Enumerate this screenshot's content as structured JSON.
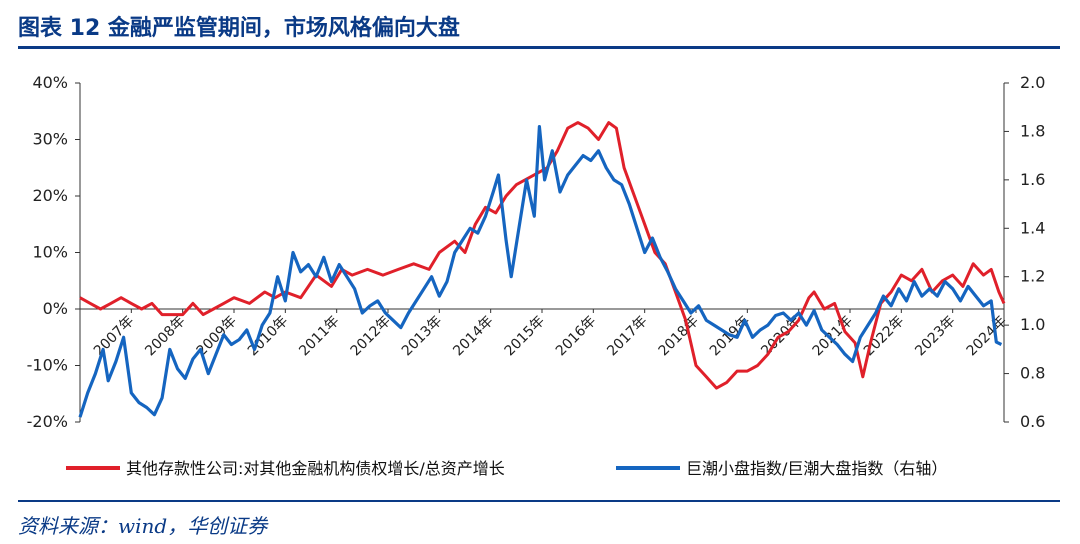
{
  "header": {
    "title": "图表 12 金融严监管期间，市场风格偏向大盘"
  },
  "footer": {
    "source": "资料来源：wind，华创证券"
  },
  "colors": {
    "series_red": "#e0202a",
    "series_blue": "#1565c0",
    "accent": "#0a3a86"
  },
  "chart_data": {
    "type": "line",
    "title": "",
    "xlabel": "",
    "ylabel": "",
    "x_tick_labels": [
      "2007年",
      "2008年",
      "2009年",
      "2010年",
      "2011年",
      "2012年",
      "2013年",
      "2014年",
      "2015年",
      "2016年",
      "2017年",
      "2018年",
      "2019年",
      "2020年",
      "2021年",
      "2022年",
      "2023年",
      "2024年"
    ],
    "xlim": [
      2007.0,
      2025.0
    ],
    "y_left": {
      "ylim": [
        -20,
        40
      ],
      "ticks": [
        "-20%",
        "-10%",
        "0%",
        "10%",
        "20%",
        "30%",
        "40%"
      ],
      "tick_values": [
        -20,
        -10,
        0,
        10,
        20,
        30,
        40
      ]
    },
    "y_right": {
      "ylim": [
        0.6,
        2.0
      ],
      "ticks": [
        "0.6",
        "0.8",
        "1.0",
        "1.2",
        "1.4",
        "1.6",
        "1.8",
        "2.0"
      ],
      "tick_values": [
        0.6,
        0.8,
        1.0,
        1.2,
        1.4,
        1.6,
        1.8,
        2.0
      ]
    },
    "legend": {
      "position": "bottom"
    },
    "series": [
      {
        "name": "其他存款性公司:对其他金融机构债权增长/总资产增长",
        "axis": "left",
        "color": "#e0202a",
        "points": [
          [
            2007.0,
            2
          ],
          [
            2007.2,
            1
          ],
          [
            2007.4,
            0
          ],
          [
            2007.6,
            1
          ],
          [
            2007.8,
            2
          ],
          [
            2008.0,
            1
          ],
          [
            2008.2,
            0
          ],
          [
            2008.4,
            1
          ],
          [
            2008.6,
            -1
          ],
          [
            2008.8,
            -1
          ],
          [
            2009.0,
            -1
          ],
          [
            2009.2,
            1
          ],
          [
            2009.4,
            -1
          ],
          [
            2009.6,
            0
          ],
          [
            2009.8,
            1
          ],
          [
            2010.0,
            2
          ],
          [
            2010.3,
            1
          ],
          [
            2010.6,
            3
          ],
          [
            2010.8,
            2
          ],
          [
            2011.0,
            3
          ],
          [
            2011.3,
            2
          ],
          [
            2011.6,
            6
          ],
          [
            2011.9,
            4
          ],
          [
            2012.1,
            7
          ],
          [
            2012.3,
            6
          ],
          [
            2012.6,
            7
          ],
          [
            2012.9,
            6
          ],
          [
            2013.2,
            7
          ],
          [
            2013.5,
            8
          ],
          [
            2013.8,
            7
          ],
          [
            2014.0,
            10
          ],
          [
            2014.3,
            12
          ],
          [
            2014.5,
            10
          ],
          [
            2014.7,
            15
          ],
          [
            2014.9,
            18
          ],
          [
            2015.1,
            17
          ],
          [
            2015.3,
            20
          ],
          [
            2015.5,
            22
          ],
          [
            2015.7,
            23
          ],
          [
            2015.9,
            24
          ],
          [
            2016.1,
            25
          ],
          [
            2016.3,
            28
          ],
          [
            2016.5,
            32
          ],
          [
            2016.7,
            33
          ],
          [
            2016.9,
            32
          ],
          [
            2017.1,
            30
          ],
          [
            2017.3,
            33
          ],
          [
            2017.45,
            32
          ],
          [
            2017.6,
            25
          ],
          [
            2017.8,
            20
          ],
          [
            2018.0,
            15
          ],
          [
            2018.2,
            10
          ],
          [
            2018.4,
            8
          ],
          [
            2018.6,
            3
          ],
          [
            2018.8,
            -2
          ],
          [
            2019.0,
            -10
          ],
          [
            2019.2,
            -12
          ],
          [
            2019.4,
            -14
          ],
          [
            2019.6,
            -13
          ],
          [
            2019.8,
            -11
          ],
          [
            2020.0,
            -11
          ],
          [
            2020.2,
            -10
          ],
          [
            2020.4,
            -8
          ],
          [
            2020.6,
            -5
          ],
          [
            2020.8,
            -4
          ],
          [
            2021.0,
            -2
          ],
          [
            2021.2,
            2
          ],
          [
            2021.3,
            3
          ],
          [
            2021.5,
            0
          ],
          [
            2021.7,
            1
          ],
          [
            2021.9,
            -4
          ],
          [
            2022.1,
            -6
          ],
          [
            2022.25,
            -12
          ],
          [
            2022.4,
            -6
          ],
          [
            2022.6,
            1
          ],
          [
            2022.8,
            3
          ],
          [
            2023.0,
            6
          ],
          [
            2023.2,
            5
          ],
          [
            2023.4,
            7
          ],
          [
            2023.6,
            3
          ],
          [
            2023.8,
            5
          ],
          [
            2024.0,
            6
          ],
          [
            2024.2,
            4
          ],
          [
            2024.4,
            8
          ],
          [
            2024.6,
            6
          ],
          [
            2024.75,
            7
          ],
          [
            2024.9,
            3
          ],
          [
            2025.0,
            1
          ]
        ]
      },
      {
        "name": "巨潮小盘指数/巨潮大盘指数（右轴）",
        "axis": "right",
        "color": "#1565c0",
        "points": [
          [
            2007.0,
            0.62
          ],
          [
            2007.15,
            0.72
          ],
          [
            2007.3,
            0.8
          ],
          [
            2007.45,
            0.9
          ],
          [
            2007.55,
            0.77
          ],
          [
            2007.7,
            0.85
          ],
          [
            2007.85,
            0.95
          ],
          [
            2008.0,
            0.72
          ],
          [
            2008.15,
            0.68
          ],
          [
            2008.3,
            0.66
          ],
          [
            2008.45,
            0.63
          ],
          [
            2008.6,
            0.7
          ],
          [
            2008.75,
            0.9
          ],
          [
            2008.9,
            0.82
          ],
          [
            2009.05,
            0.78
          ],
          [
            2009.2,
            0.86
          ],
          [
            2009.35,
            0.9
          ],
          [
            2009.5,
            0.8
          ],
          [
            2009.65,
            0.88
          ],
          [
            2009.8,
            0.96
          ],
          [
            2009.95,
            0.92
          ],
          [
            2010.1,
            0.94
          ],
          [
            2010.25,
            0.98
          ],
          [
            2010.4,
            0.9
          ],
          [
            2010.55,
            1.0
          ],
          [
            2010.7,
            1.05
          ],
          [
            2010.85,
            1.2
          ],
          [
            2011.0,
            1.1
          ],
          [
            2011.15,
            1.3
          ],
          [
            2011.3,
            1.22
          ],
          [
            2011.45,
            1.25
          ],
          [
            2011.6,
            1.2
          ],
          [
            2011.75,
            1.28
          ],
          [
            2011.9,
            1.18
          ],
          [
            2012.05,
            1.25
          ],
          [
            2012.2,
            1.2
          ],
          [
            2012.35,
            1.15
          ],
          [
            2012.5,
            1.05
          ],
          [
            2012.65,
            1.08
          ],
          [
            2012.8,
            1.1
          ],
          [
            2012.95,
            1.05
          ],
          [
            2013.1,
            1.02
          ],
          [
            2013.25,
            0.99
          ],
          [
            2013.4,
            1.05
          ],
          [
            2013.55,
            1.1
          ],
          [
            2013.7,
            1.15
          ],
          [
            2013.85,
            1.2
          ],
          [
            2014.0,
            1.12
          ],
          [
            2014.15,
            1.18
          ],
          [
            2014.3,
            1.3
          ],
          [
            2014.45,
            1.35
          ],
          [
            2014.6,
            1.4
          ],
          [
            2014.75,
            1.38
          ],
          [
            2014.9,
            1.45
          ],
          [
            2015.05,
            1.55
          ],
          [
            2015.15,
            1.62
          ],
          [
            2015.3,
            1.35
          ],
          [
            2015.4,
            1.2
          ],
          [
            2015.55,
            1.4
          ],
          [
            2015.7,
            1.6
          ],
          [
            2015.85,
            1.45
          ],
          [
            2015.95,
            1.82
          ],
          [
            2016.05,
            1.6
          ],
          [
            2016.2,
            1.72
          ],
          [
            2016.35,
            1.55
          ],
          [
            2016.5,
            1.62
          ],
          [
            2016.65,
            1.66
          ],
          [
            2016.8,
            1.7
          ],
          [
            2016.95,
            1.68
          ],
          [
            2017.1,
            1.72
          ],
          [
            2017.25,
            1.65
          ],
          [
            2017.4,
            1.6
          ],
          [
            2017.55,
            1.58
          ],
          [
            2017.7,
            1.5
          ],
          [
            2017.85,
            1.4
          ],
          [
            2018.0,
            1.3
          ],
          [
            2018.15,
            1.36
          ],
          [
            2018.3,
            1.28
          ],
          [
            2018.45,
            1.22
          ],
          [
            2018.6,
            1.15
          ],
          [
            2018.75,
            1.1
          ],
          [
            2018.9,
            1.05
          ],
          [
            2019.05,
            1.08
          ],
          [
            2019.2,
            1.02
          ],
          [
            2019.35,
            1.0
          ],
          [
            2019.5,
            0.98
          ],
          [
            2019.65,
            0.96
          ],
          [
            2019.8,
            0.95
          ],
          [
            2019.95,
            1.02
          ],
          [
            2020.1,
            0.95
          ],
          [
            2020.25,
            0.98
          ],
          [
            2020.4,
            1.0
          ],
          [
            2020.55,
            1.04
          ],
          [
            2020.7,
            1.05
          ],
          [
            2020.85,
            1.02
          ],
          [
            2021.0,
            1.05
          ],
          [
            2021.15,
            1.0
          ],
          [
            2021.3,
            1.06
          ],
          [
            2021.45,
            0.98
          ],
          [
            2021.6,
            0.95
          ],
          [
            2021.75,
            0.92
          ],
          [
            2021.9,
            0.88
          ],
          [
            2022.05,
            0.85
          ],
          [
            2022.2,
            0.95
          ],
          [
            2022.35,
            1.0
          ],
          [
            2022.5,
            1.05
          ],
          [
            2022.65,
            1.12
          ],
          [
            2022.8,
            1.08
          ],
          [
            2022.95,
            1.15
          ],
          [
            2023.1,
            1.1
          ],
          [
            2023.25,
            1.18
          ],
          [
            2023.4,
            1.12
          ],
          [
            2023.55,
            1.15
          ],
          [
            2023.7,
            1.12
          ],
          [
            2023.85,
            1.18
          ],
          [
            2024.0,
            1.15
          ],
          [
            2024.15,
            1.1
          ],
          [
            2024.3,
            1.16
          ],
          [
            2024.45,
            1.12
          ],
          [
            2024.6,
            1.08
          ],
          [
            2024.75,
            1.1
          ],
          [
            2024.85,
            0.93
          ],
          [
            2024.95,
            0.92
          ]
        ]
      }
    ]
  }
}
